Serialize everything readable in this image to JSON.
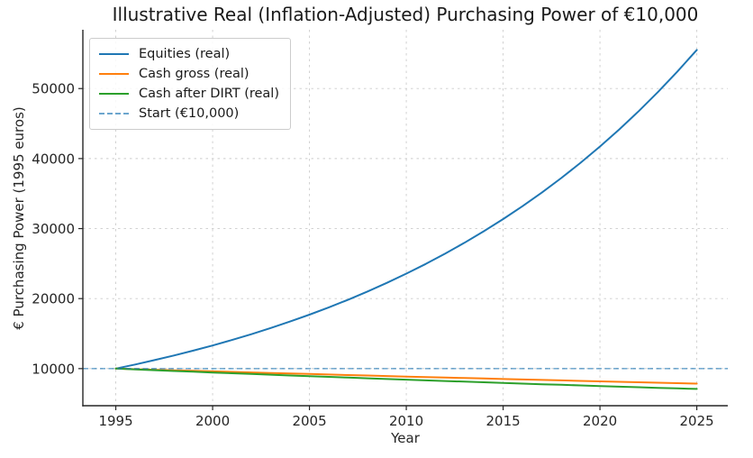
{
  "chart_data": {
    "type": "line",
    "title": "Illustrative Real (Inflation-Adjusted) Purchasing Power of €10,000",
    "xlabel": "Year",
    "ylabel": "€ Purchasing Power (1995 euros)",
    "x": [
      1995,
      1996,
      1997,
      1998,
      1999,
      2000,
      2001,
      2002,
      2003,
      2004,
      2005,
      2006,
      2007,
      2008,
      2009,
      2010,
      2011,
      2012,
      2013,
      2014,
      2015,
      2016,
      2017,
      2018,
      2019,
      2020,
      2021,
      2022,
      2023,
      2024,
      2025
    ],
    "series": [
      {
        "name": "Equities (real)",
        "color": "#1f77b4",
        "values": [
          10000,
          10588,
          11211,
          11870,
          12568,
          13307,
          14089,
          14918,
          15795,
          16723,
          17707,
          18748,
          19850,
          21018,
          22253,
          23562,
          24947,
          26414,
          27967,
          29612,
          31353,
          33197,
          35148,
          37215,
          39403,
          41720,
          44174,
          46771,
          49521,
          52433,
          55516
        ]
      },
      {
        "name": "Cash gross (real)",
        "color": "#ff7f0e",
        "values": [
          10000,
          9920,
          9841,
          9762,
          9684,
          9606,
          9529,
          9453,
          9378,
          9303,
          9228,
          9154,
          9081,
          9008,
          8936,
          8865,
          8794,
          8724,
          8654,
          8585,
          8516,
          8448,
          8380,
          8313,
          8247,
          8181,
          8115,
          8050,
          7986,
          7922,
          7859
        ]
      },
      {
        "name": "Cash after DIRT (real)",
        "color": "#2ca02c",
        "values": [
          10000,
          9886,
          9773,
          9662,
          9552,
          9443,
          9335,
          9229,
          9124,
          9020,
          8917,
          8815,
          8715,
          8615,
          8517,
          8420,
          8324,
          8229,
          8135,
          8042,
          7951,
          7860,
          7771,
          7682,
          7594,
          7508,
          7422,
          7338,
          7254,
          7171,
          7090
        ]
      }
    ],
    "reference_line": {
      "label": "Start (€10,000)",
      "value": 10000,
      "color": "#1f77b4",
      "opacity": 0.6,
      "style": "dashed"
    },
    "legend": [
      {
        "label": "Equities (real)",
        "color": "#1f77b4",
        "dash": false
      },
      {
        "label": "Cash gross (real)",
        "color": "#ff7f0e",
        "dash": false
      },
      {
        "label": "Cash after DIRT (real)",
        "color": "#2ca02c",
        "dash": false
      },
      {
        "label": "Start (€10,000)",
        "color": "#1f77b4",
        "dash": true,
        "opacity": 0.65
      }
    ],
    "legend_position": "upper left",
    "xticks": [
      1995,
      2000,
      2005,
      2010,
      2015,
      2020,
      2025
    ],
    "yticks": [
      10000,
      20000,
      30000,
      40000,
      50000
    ],
    "xlim": [
      1993.3,
      2026.6
    ],
    "ylim": [
      4700,
      58400
    ],
    "grid": true,
    "grid_style": "dashed",
    "axis_color": "#262626",
    "grid_color": "#cccccc",
    "background": "#ffffff"
  }
}
